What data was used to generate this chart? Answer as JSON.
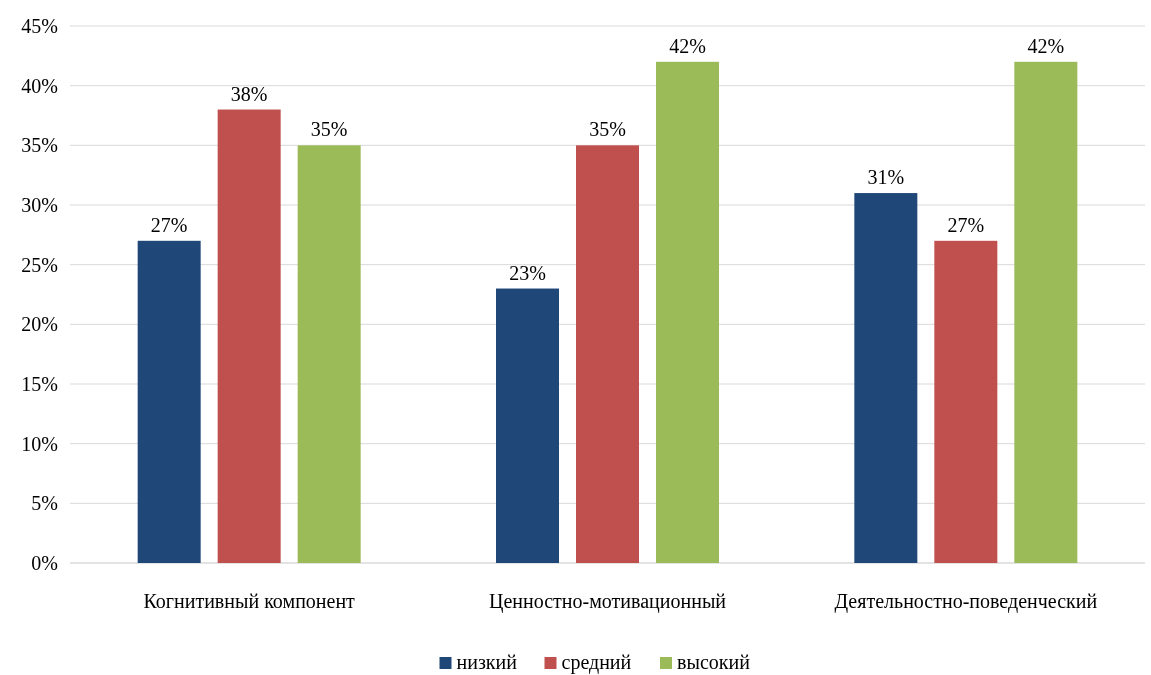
{
  "chart_data": {
    "type": "bar",
    "categories": [
      "Когнитивный компонент",
      "Ценностно-мотивационный",
      "Деятельностно-поведенческий"
    ],
    "series": [
      {
        "name": "низкий",
        "color": "#1f4778",
        "values": [
          27,
          23,
          31
        ],
        "value_labels": [
          "27%",
          "23%",
          "31%"
        ]
      },
      {
        "name": "средний",
        "color": "#c0504d",
        "values": [
          38,
          35,
          27
        ],
        "value_labels": [
          "38%",
          "35%",
          "27%"
        ]
      },
      {
        "name": "высокий",
        "color": "#9bbb59",
        "values": [
          35,
          42,
          42
        ],
        "value_labels": [
          "35%",
          "42%",
          "42%"
        ]
      }
    ],
    "ylim": [
      0,
      45
    ],
    "yticks": [
      {
        "value": 0,
        "label": "0%"
      },
      {
        "value": 5,
        "label": "5%"
      },
      {
        "value": 10,
        "label": "10%"
      },
      {
        "value": 15,
        "label": "15%"
      },
      {
        "value": 20,
        "label": "20%"
      },
      {
        "value": 25,
        "label": "25%"
      },
      {
        "value": 30,
        "label": "30%"
      },
      {
        "value": 35,
        "label": "35%"
      },
      {
        "value": 40,
        "label": "40%"
      },
      {
        "value": 45,
        "label": "45%"
      }
    ],
    "grid": "y",
    "legend": "bottom"
  }
}
